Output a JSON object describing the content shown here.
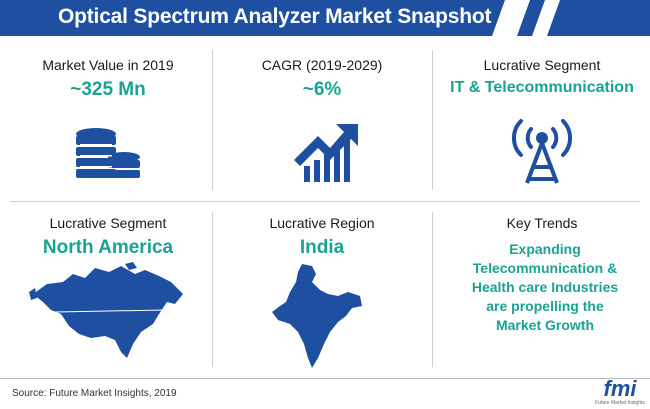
{
  "title": "Optical Spectrum Analyzer Market Snapshot",
  "colors": {
    "banner": "#1e4fa0",
    "accent": "#1aa393",
    "icon": "#1e4fa0"
  },
  "panels": [
    {
      "label": "Market Value in 2019",
      "value": "~325 Mn",
      "icon": "coin-stack-icon"
    },
    {
      "label": "CAGR (2019-2029)",
      "value": "~6%",
      "icon": "growth-chart-icon"
    },
    {
      "label": "Lucrative Segment",
      "value": "IT & Telecommunication",
      "icon": "signal-tower-icon"
    },
    {
      "label": "Lucrative Segment",
      "value": "North America",
      "icon": "north-america-map-icon"
    },
    {
      "label": "Lucrative Region",
      "value": "India",
      "icon": "india-map-icon"
    },
    {
      "label": "Key Trends",
      "lines": [
        "Expanding",
        "Telecommunication &",
        "Health care Industries",
        "are propelling the",
        "Market Growth"
      ]
    }
  ],
  "source": "Source: Future Market Insights, 2019",
  "logo": {
    "text": "fmi",
    "subtitle": "Future Market Insights"
  }
}
